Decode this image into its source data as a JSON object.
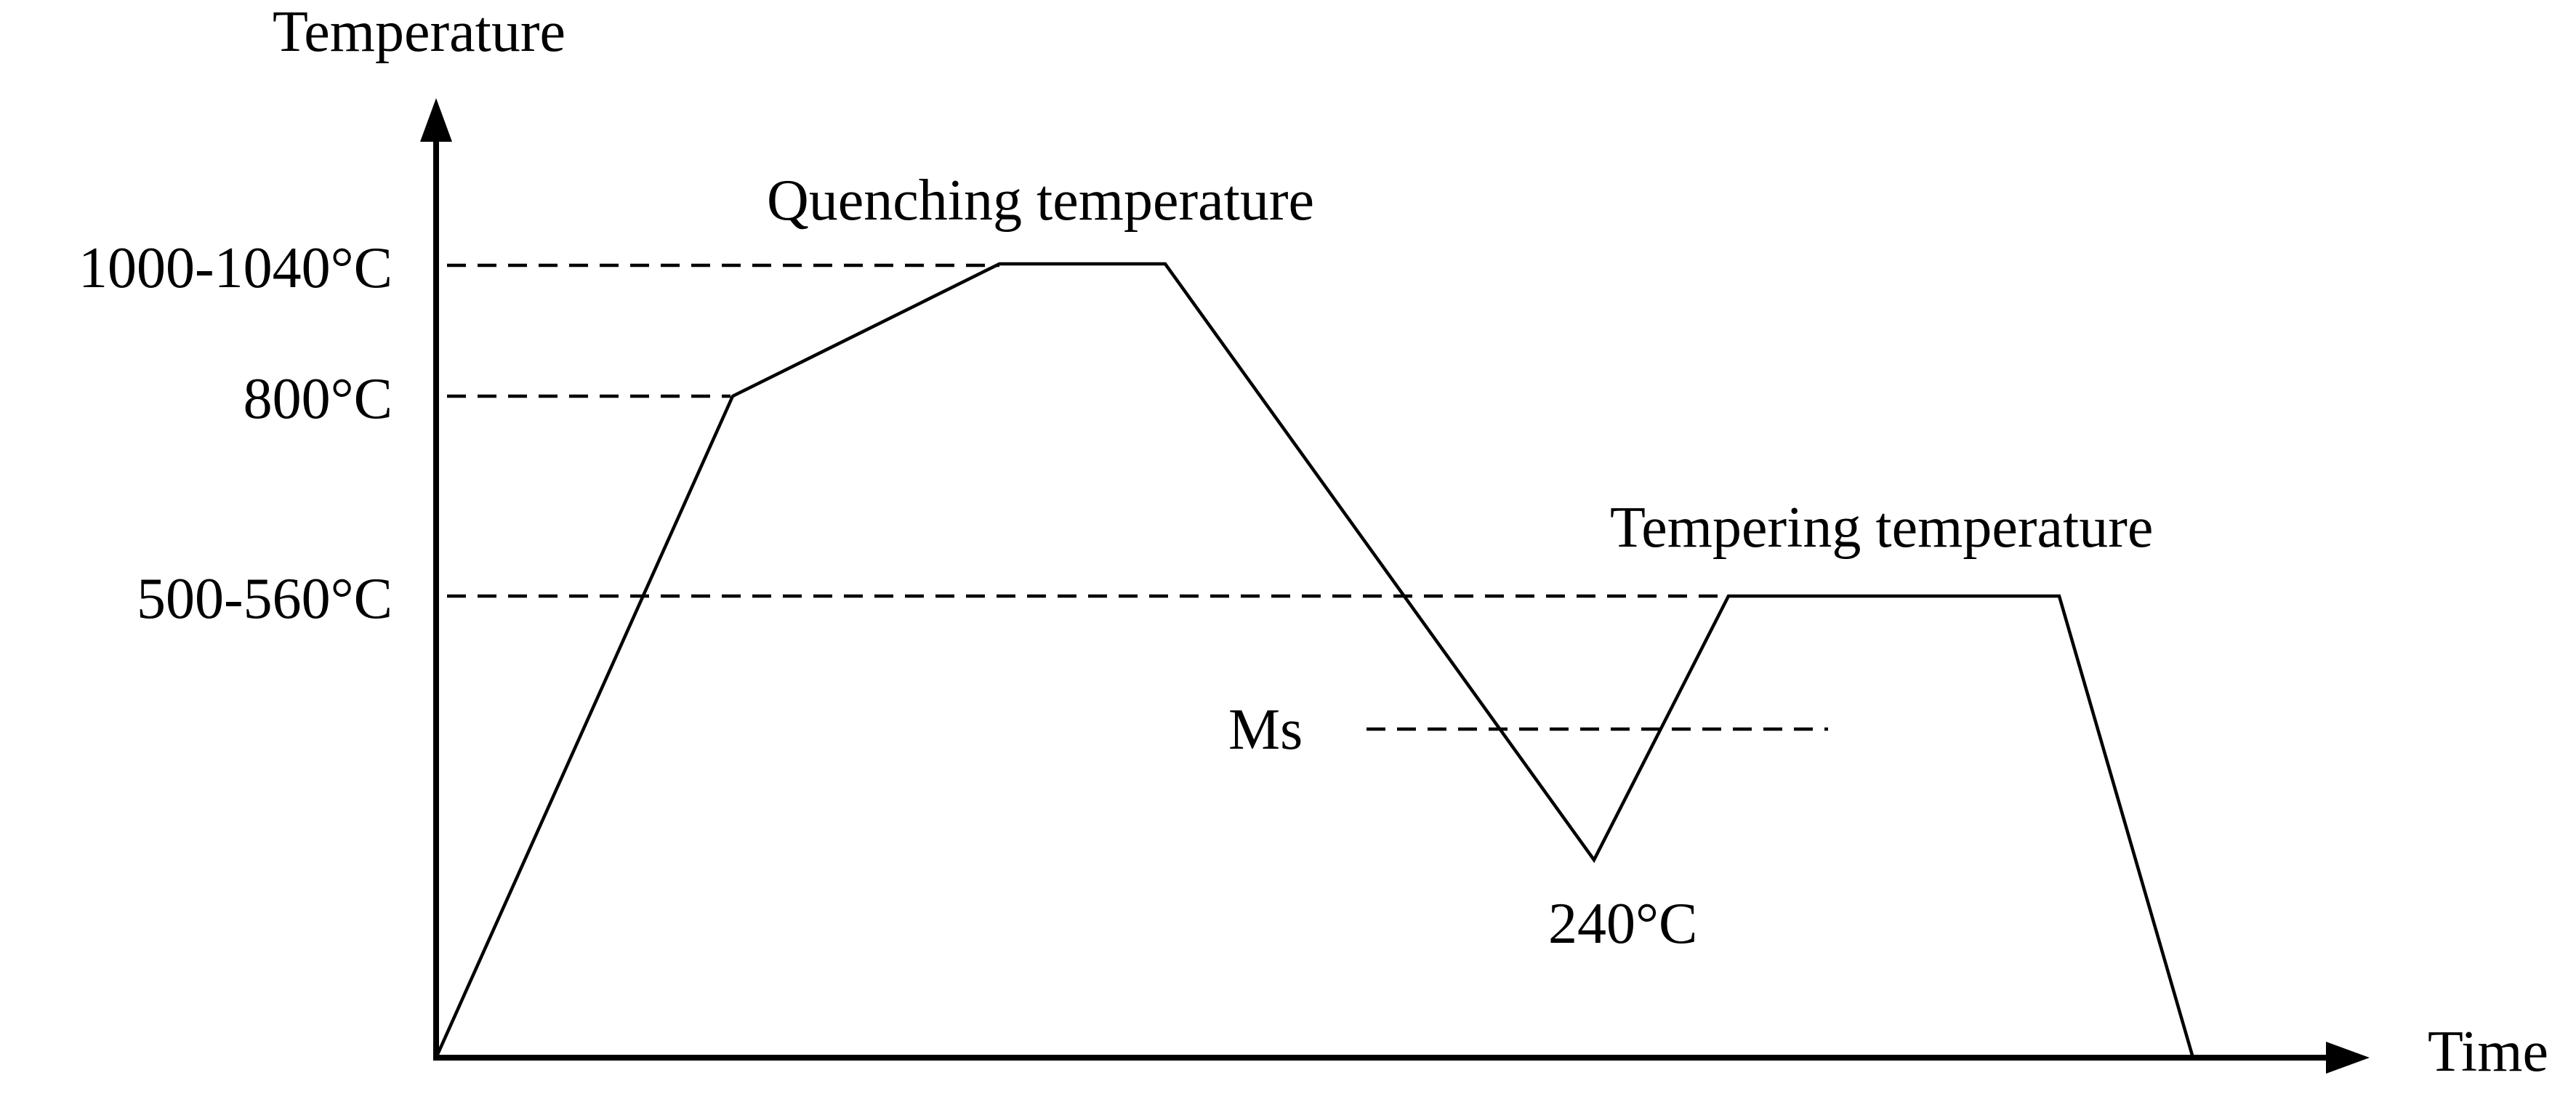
{
  "axes": {
    "y_label": "Temperature",
    "x_label": "Time"
  },
  "levels": {
    "quench_range": "1000-1040°C",
    "preheat": "800°C",
    "temper_range": "500-560°C",
    "ms": "Ms",
    "quench_min": "240°C"
  },
  "annotations": {
    "quenching": "Quenching temperature",
    "tempering": "Tempering temperature"
  }
}
